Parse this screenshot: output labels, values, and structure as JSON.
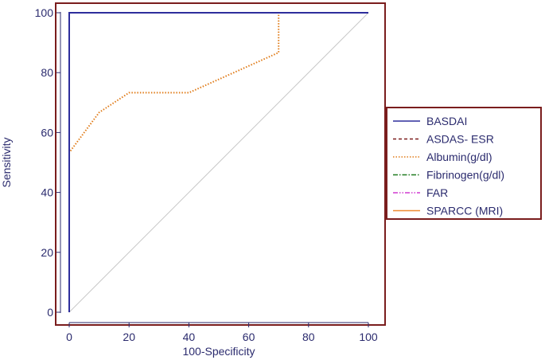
{
  "chart_data": {
    "type": "line",
    "title": "",
    "xlabel": "100-Specificity",
    "ylabel": "Sensitivity",
    "xlim": [
      0,
      100
    ],
    "ylim": [
      0,
      100
    ],
    "xticks": [
      "0",
      "20",
      "40",
      "60",
      "80",
      "100"
    ],
    "yticks": [
      "0",
      "20",
      "40",
      "60",
      "80",
      "100"
    ],
    "grid": false,
    "legend_position": "right",
    "frame_color": "#7a1d1d",
    "diagonal_color": "#c8c8c8",
    "series": [
      {
        "name": "BASDAI",
        "color": "#2e2e9c",
        "dash": "solid",
        "x": [
          0,
          0,
          100
        ],
        "y": [
          0,
          100,
          100
        ]
      },
      {
        "name": "ASDAS- ESR",
        "color": "#7b1c1c",
        "dash": "dashed",
        "x": [
          0,
          0,
          100
        ],
        "y": [
          0,
          100,
          100
        ]
      },
      {
        "name": "Albumin(g/dl)",
        "color": "#e07c1a",
        "dash": "dotted",
        "x": [
          0,
          0,
          10,
          20,
          40,
          70,
          70,
          100
        ],
        "y": [
          0,
          53.3,
          66.7,
          73.3,
          73.3,
          86.7,
          100,
          100
        ]
      },
      {
        "name": "Fibrinogen(g/dl)",
        "color": "#1f7a1f",
        "dash": "dashdot",
        "x": [
          0,
          0,
          100
        ],
        "y": [
          0,
          100,
          100
        ]
      },
      {
        "name": "FAR",
        "color": "#d13ad1",
        "dash": "dashdotdot",
        "x": [
          0,
          0,
          100
        ],
        "y": [
          0,
          100,
          100
        ]
      },
      {
        "name": "SPARCC (MRI)",
        "color": "#f08a30",
        "dash": "solid",
        "x": [
          0,
          0,
          100
        ],
        "y": [
          0,
          100,
          100
        ]
      }
    ]
  }
}
